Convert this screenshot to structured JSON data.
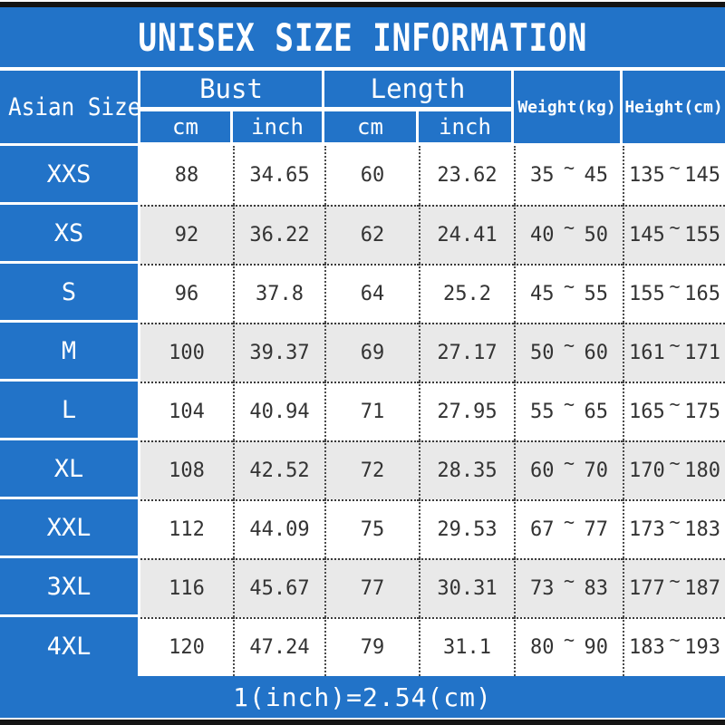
{
  "title": "UNISEX SIZE INFORMATION",
  "table": {
    "size_col_header": "Asian Size",
    "bust_group_label": "Bust",
    "length_group_label": "Length",
    "unit_cm": "cm",
    "unit_inch": "inch",
    "weight_header": "Weight(kg)",
    "height_header": "Height(cm)",
    "tilde": "~",
    "rows": [
      {
        "size": "XXS",
        "bust_cm": "88",
        "bust_inch": "34.65",
        "length_cm": "60",
        "length_inch": "23.62",
        "weight_min": "35",
        "weight_max": "45",
        "height_min": "135",
        "height_max": "145"
      },
      {
        "size": "XS",
        "bust_cm": "92",
        "bust_inch": "36.22",
        "length_cm": "62",
        "length_inch": "24.41",
        "weight_min": "40",
        "weight_max": "50",
        "height_min": "145",
        "height_max": "155"
      },
      {
        "size": "S",
        "bust_cm": "96",
        "bust_inch": "37.8",
        "length_cm": "64",
        "length_inch": "25.2",
        "weight_min": "45",
        "weight_max": "55",
        "height_min": "155",
        "height_max": "165"
      },
      {
        "size": "M",
        "bust_cm": "100",
        "bust_inch": "39.37",
        "length_cm": "69",
        "length_inch": "27.17",
        "weight_min": "50",
        "weight_max": "60",
        "height_min": "161",
        "height_max": "171"
      },
      {
        "size": "L",
        "bust_cm": "104",
        "bust_inch": "40.94",
        "length_cm": "71",
        "length_inch": "27.95",
        "weight_min": "55",
        "weight_max": "65",
        "height_min": "165",
        "height_max": "175"
      },
      {
        "size": "XL",
        "bust_cm": "108",
        "bust_inch": "42.52",
        "length_cm": "72",
        "length_inch": "28.35",
        "weight_min": "60",
        "weight_max": "70",
        "height_min": "170",
        "height_max": "180"
      },
      {
        "size": "XXL",
        "bust_cm": "112",
        "bust_inch": "44.09",
        "length_cm": "75",
        "length_inch": "29.53",
        "weight_min": "67",
        "weight_max": "77",
        "height_min": "173",
        "height_max": "183"
      },
      {
        "size": "3XL",
        "bust_cm": "116",
        "bust_inch": "45.67",
        "length_cm": "77",
        "length_inch": "30.31",
        "weight_min": "73",
        "weight_max": "83",
        "height_min": "177",
        "height_max": "187"
      },
      {
        "size": "4XL",
        "bust_cm": "120",
        "bust_inch": "47.24",
        "length_cm": "79",
        "length_inch": "31.1",
        "weight_min": "80",
        "weight_max": "90",
        "height_min": "183",
        "height_max": "193"
      }
    ]
  },
  "footer": {
    "note": "1(inch)=2.54(cm)"
  },
  "colors": {
    "blue": "#2273c8",
    "stripe": "#e9e9e9",
    "bar": "#141414"
  }
}
